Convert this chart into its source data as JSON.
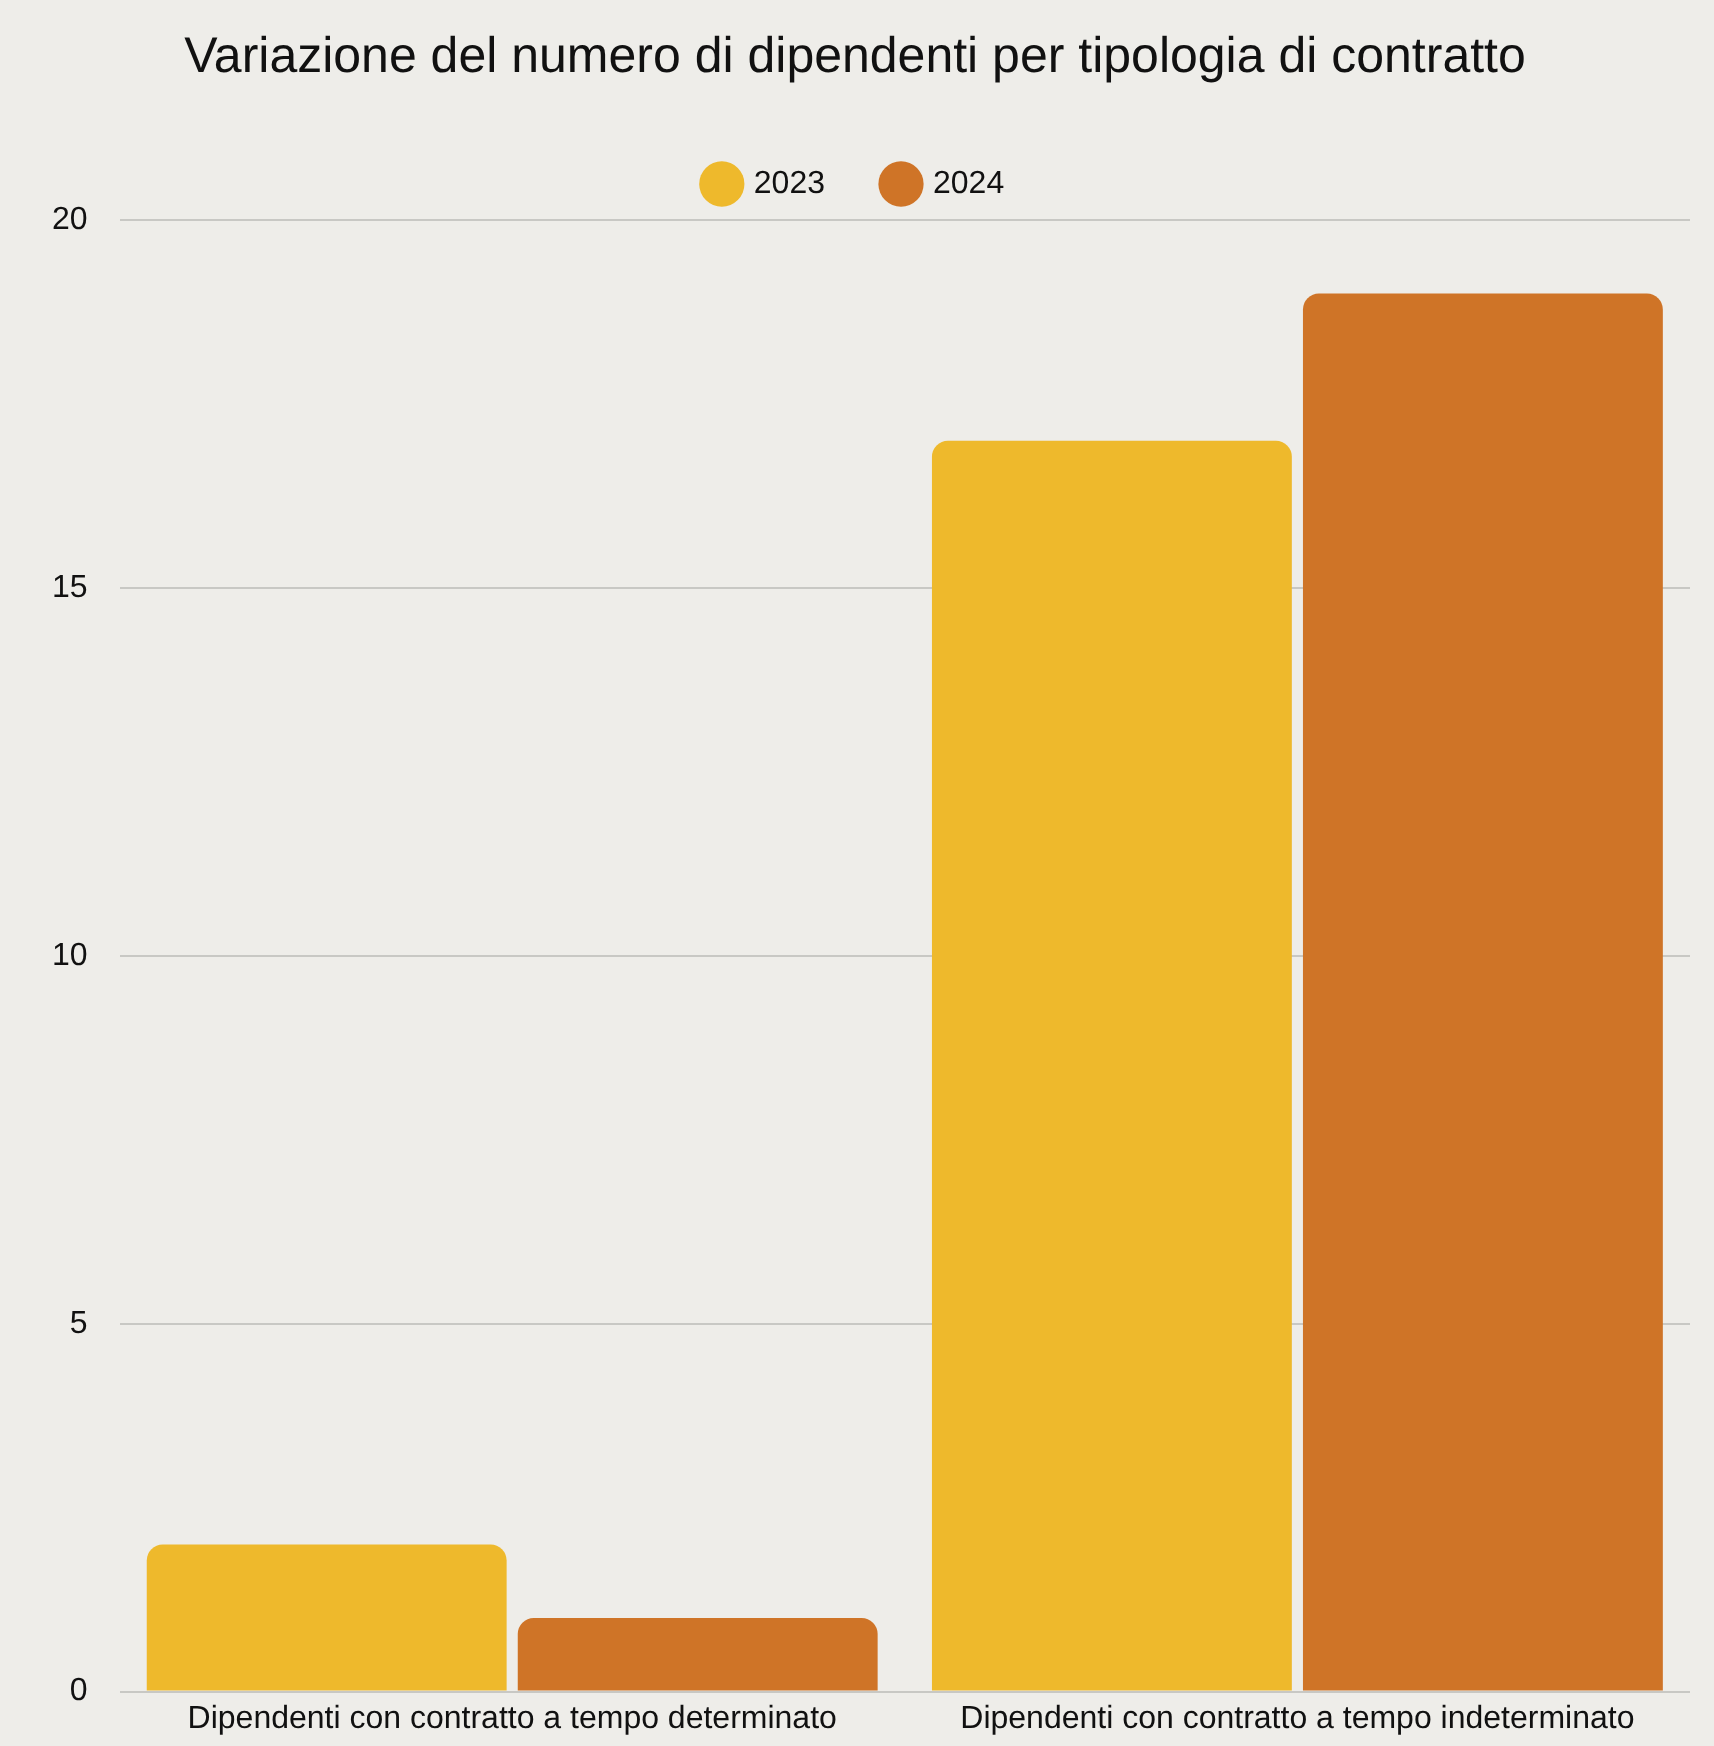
{
  "chart_data": {
    "type": "bar",
    "title": "Variazione del numero di dipendenti per tipologia di contratto",
    "categories": [
      "Dipendenti con contratto a tempo determinato",
      "Dipendenti con contratto a tempo indeterminato"
    ],
    "series": [
      {
        "name": "2023",
        "color": "#eeb92c",
        "values": [
          2,
          17
        ]
      },
      {
        "name": "2024",
        "color": "#cf7427",
        "values": [
          1,
          19
        ]
      }
    ],
    "ylim": [
      0,
      20
    ],
    "yticks": [
      0,
      5,
      10,
      15,
      20
    ],
    "grid": "y",
    "legend": "top"
  }
}
